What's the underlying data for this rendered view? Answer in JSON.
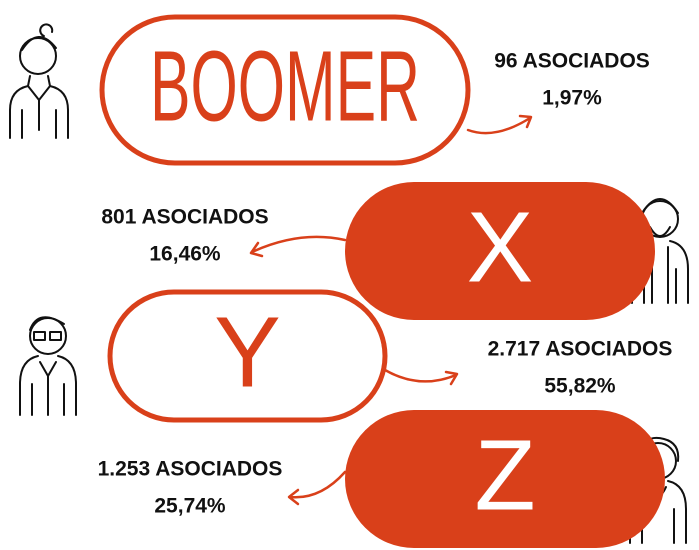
{
  "generations": [
    {
      "label": "BOOMER",
      "count": "96 ASOCIADOS",
      "percent": "1,97%"
    },
    {
      "label": "X",
      "count": "801 ASOCIADOS",
      "percent": "16,46%"
    },
    {
      "label": "Y",
      "count": "2.717 ASOCIADOS",
      "percent": "55,82%"
    },
    {
      "label": "Z",
      "count": "1.253 ASOCIADOS",
      "percent": "25,74%"
    }
  ]
}
